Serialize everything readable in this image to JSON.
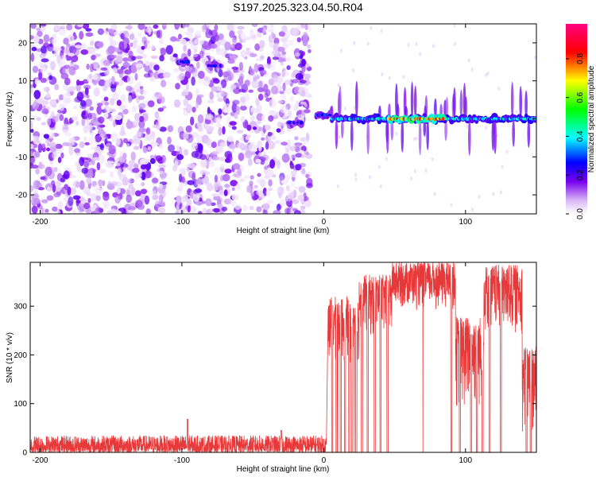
{
  "title": "S197.2025.323.04.50.R04",
  "chart_data": [
    {
      "type": "heatmap",
      "title": "S197.2025.323.04.50.R04",
      "xlabel": "Height of straight line (km)",
      "ylabel": "Frequency (Hz)",
      "xlim": [
        -207,
        150
      ],
      "ylim": [
        -25,
        25
      ],
      "x_ticks": [
        -200,
        -100,
        0,
        100
      ],
      "y_ticks": [
        -20,
        -10,
        0,
        10,
        20
      ],
      "colorbar": {
        "label": "Normalized spectral amplitude",
        "range": [
          0,
          0.98
        ],
        "ticks": [
          0.0,
          0.2,
          0.4,
          0.6,
          0.8
        ],
        "colormap": [
          "#ffffff",
          "#7700ee",
          "#0000ff",
          "#00ffff",
          "#00ff00",
          "#ffff00",
          "#ff0000",
          "#ff0080"
        ]
      },
      "noise_region": {
        "x_range": [
          -207,
          -10
        ],
        "frequency_range": [
          -25,
          25
        ],
        "amplitude_range": [
          0.02,
          0.2
        ]
      },
      "features": [
        {
          "x": [
            -103,
            -95
          ],
          "y": 15,
          "amplitude": 0.3
        },
        {
          "x": [
            -82,
            -72
          ],
          "y": 14,
          "amplitude": 0.27
        },
        {
          "x": [
            -25,
            -15
          ],
          "y": -1,
          "amplitude": 0.3
        },
        {
          "x": [
            -6,
            5
          ],
          "y": 1,
          "amplitude": 0.35
        },
        {
          "x": [
            5,
            150
          ],
          "y": 0,
          "amplitude": 0.45
        },
        {
          "x": [
            45,
            85
          ],
          "y": 0,
          "amplitude": 0.9
        }
      ]
    },
    {
      "type": "line",
      "xlabel": "Height of straight line (km)",
      "ylabel": "SNR (10 * v/v)",
      "xlim": [
        -207,
        150
      ],
      "ylim": [
        0,
        390
      ],
      "x_ticks": [
        -200,
        -100,
        0,
        100
      ],
      "y_ticks": [
        0,
        100,
        200,
        300
      ],
      "color": "#e8393a",
      "segments": [
        {
          "x": [
            -207,
            2
          ],
          "y_range": [
            0,
            35
          ],
          "peaks": [
            {
              "x": -96,
              "y": 68
            },
            {
              "x": -30,
              "y": 45
            }
          ]
        },
        {
          "x": [
            3,
            25
          ],
          "y_range": [
            180,
            320
          ]
        },
        {
          "x": [
            25,
            48
          ],
          "y_range": [
            230,
            365
          ]
        },
        {
          "x": [
            48,
            93
          ],
          "y_range": [
            290,
            390
          ]
        },
        {
          "x": [
            93,
            113
          ],
          "y_range": [
            80,
            280
          ]
        },
        {
          "x": [
            113,
            140
          ],
          "y_range": [
            240,
            385
          ]
        },
        {
          "x": [
            140,
            150
          ],
          "y_range": [
            30,
            220
          ]
        }
      ]
    }
  ]
}
